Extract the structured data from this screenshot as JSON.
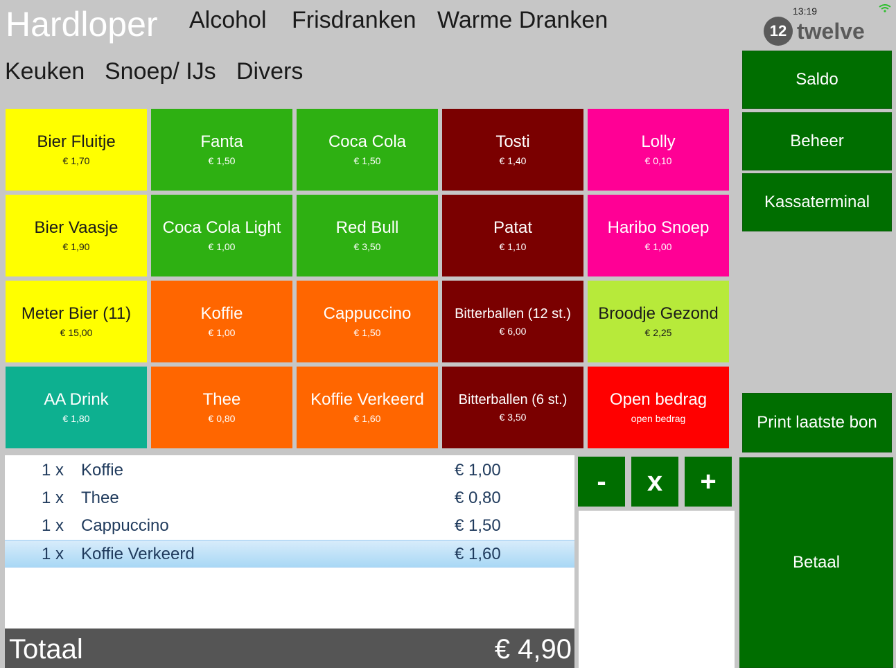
{
  "header": {
    "title": "Hardloper",
    "categories_row1": [
      "Alcohol",
      "Frisdranken",
      "Warme Dranken"
    ],
    "categories_row2": [
      "Keuken",
      "Snoep/ IJs",
      "Divers"
    ],
    "clock": "13:19",
    "logo_text": "twelve",
    "logo_badge": "12"
  },
  "products": [
    {
      "name": "Bier Fluitje",
      "price": "€ 1,70",
      "bg": "#ffff00",
      "fg": "#1a1a1a"
    },
    {
      "name": "Fanta",
      "price": "€ 1,50",
      "bg": "#2eb012",
      "fg": "#ffffff"
    },
    {
      "name": "Coca Cola",
      "price": "€ 1,50",
      "bg": "#2eb012",
      "fg": "#ffffff"
    },
    {
      "name": "Tosti",
      "price": "€ 1,40",
      "bg": "#7a0000",
      "fg": "#ffffff"
    },
    {
      "name": "Lolly",
      "price": "€ 0,10",
      "bg": "#ff0095",
      "fg": "#ffffff"
    },
    {
      "name": "Bier Vaasje",
      "price": "€ 1,90",
      "bg": "#ffff00",
      "fg": "#1a1a1a"
    },
    {
      "name": "Coca Cola Light",
      "price": "€ 1,00",
      "bg": "#2eb012",
      "fg": "#ffffff"
    },
    {
      "name": "Red Bull",
      "price": "€ 3,50",
      "bg": "#2eb012",
      "fg": "#ffffff"
    },
    {
      "name": "Patat",
      "price": "€ 1,10",
      "bg": "#7a0000",
      "fg": "#ffffff"
    },
    {
      "name": "Haribo Snoep",
      "price": "€ 1,00",
      "bg": "#ff0095",
      "fg": "#ffffff"
    },
    {
      "name": "Meter Bier (11)",
      "price": "€ 15,00",
      "bg": "#ffff00",
      "fg": "#1a1a1a"
    },
    {
      "name": "Koffie",
      "price": "€ 1,00",
      "bg": "#ff6600",
      "fg": "#ffffff"
    },
    {
      "name": "Cappuccino",
      "price": "€ 1,50",
      "bg": "#ff6600",
      "fg": "#ffffff"
    },
    {
      "name": "Bitterballen (12 st.)",
      "price": "€ 6,00",
      "bg": "#7a0000",
      "fg": "#ffffff",
      "small": true
    },
    {
      "name": "Broodje Gezond",
      "price": "€ 2,25",
      "bg": "#b7ea3a",
      "fg": "#1a1a1a"
    },
    {
      "name": "AA Drink",
      "price": "€ 1,80",
      "bg": "#0db090",
      "fg": "#ffffff"
    },
    {
      "name": "Thee",
      "price": "€ 0,80",
      "bg": "#ff6600",
      "fg": "#ffffff"
    },
    {
      "name": "Koffie Verkeerd",
      "price": "€ 1,60",
      "bg": "#ff6600",
      "fg": "#ffffff"
    },
    {
      "name": "Bitterballen (6 st.)",
      "price": "€ 3,50",
      "bg": "#7a0000",
      "fg": "#ffffff",
      "small": true
    },
    {
      "name": "Open bedrag",
      "price": "open bedrag",
      "bg": "#ff0000",
      "fg": "#ffffff"
    }
  ],
  "side_buttons": {
    "saldo": "Saldo",
    "beheer": "Beheer",
    "kassaterminal": "Kassaterminal",
    "print": "Print laatste bon",
    "betaal": "Betaal"
  },
  "order": {
    "items": [
      {
        "qty": "1 x",
        "name": "Koffie",
        "price": "€ 1,00"
      },
      {
        "qty": "1 x",
        "name": "Thee",
        "price": "€ 0,80"
      },
      {
        "qty": "1 x",
        "name": "Cappuccino",
        "price": "€ 1,50"
      },
      {
        "qty": "1 x",
        "name": "Koffie Verkeerd",
        "price": "€ 1,60",
        "selected": true
      }
    ],
    "total_label": "Totaal",
    "total_value": "€ 4,90"
  },
  "controls": {
    "minus": "-",
    "remove": "x",
    "plus": "+"
  },
  "colors": {
    "accent": "#006e00",
    "background": "#c6c6c6"
  }
}
